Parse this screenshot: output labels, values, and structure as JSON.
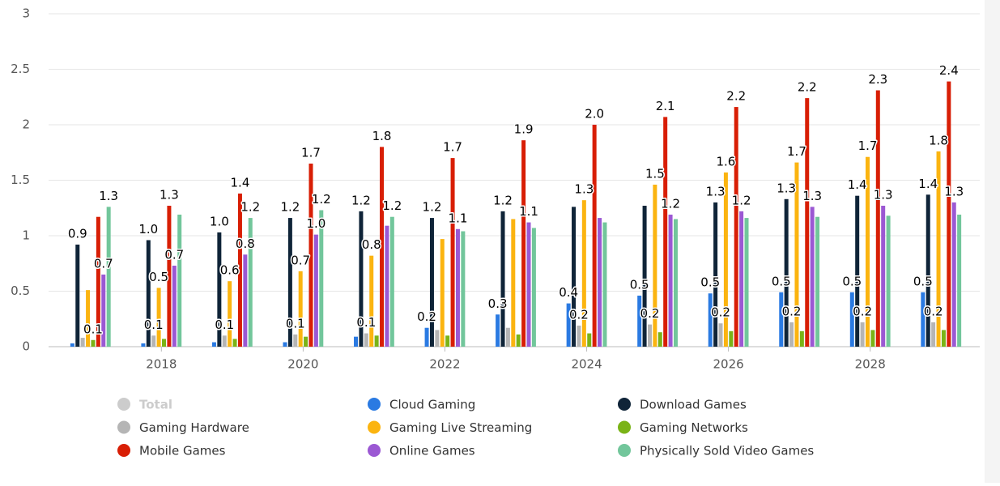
{
  "chart_data": {
    "type": "bar",
    "x": [
      2017,
      2018,
      2019,
      2020,
      2021,
      2022,
      2023,
      2024,
      2025,
      2026,
      2027,
      2028,
      2029
    ],
    "xlim": [
      2016.5,
      2029.5
    ],
    "xticks": [
      2018,
      2020,
      2022,
      2024,
      2026,
      2028
    ],
    "ylim": [
      0,
      3
    ],
    "yticks": [
      0,
      0.5,
      1,
      1.5,
      2,
      2.5,
      3
    ],
    "grid": true,
    "series": [
      {
        "name": "Total",
        "color": "#cccccc",
        "visible": false,
        "values": [
          null,
          null,
          null,
          null,
          null,
          null,
          null,
          null,
          null,
          null,
          null,
          null,
          null
        ]
      },
      {
        "name": "Cloud Gaming",
        "color": "#2a7ae2",
        "values": [
          0.03,
          0.03,
          0.04,
          0.04,
          0.09,
          0.17,
          0.29,
          0.39,
          0.46,
          0.48,
          0.49,
          0.49,
          0.49
        ],
        "value_labels": [
          null,
          null,
          null,
          null,
          null,
          "0.2",
          "0.3",
          "0.4",
          "0.5",
          "0.5",
          "0.5",
          "0.5",
          "0.5"
        ]
      },
      {
        "name": "Download Games",
        "color": "#0f2438",
        "values": [
          0.92,
          0.96,
          1.03,
          1.16,
          1.22,
          1.16,
          1.22,
          1.26,
          1.27,
          1.3,
          1.33,
          1.36,
          1.37
        ],
        "value_labels": [
          "0.9",
          "1.0",
          "1.0",
          "1.2",
          "1.2",
          "1.2",
          "1.2",
          null,
          null,
          "1.3",
          "1.3",
          "1.4",
          "1.4"
        ]
      },
      {
        "name": "Gaming Hardware",
        "color": "#b5b5b5",
        "values": [
          0.08,
          0.1,
          0.1,
          0.11,
          0.12,
          0.15,
          0.17,
          0.19,
          0.2,
          0.21,
          0.22,
          0.22,
          0.22
        ],
        "value_labels": [
          null,
          "0.1",
          "0.1",
          "0.1",
          "0.1",
          null,
          null,
          "0.2",
          "0.2",
          "0.2",
          "0.2",
          "0.2",
          "0.2"
        ]
      },
      {
        "name": "Gaming Live Streaming",
        "color": "#fbb410",
        "values": [
          0.51,
          0.53,
          0.59,
          0.68,
          0.82,
          0.97,
          1.15,
          1.32,
          1.46,
          1.57,
          1.66,
          1.71,
          1.76
        ],
        "value_labels": [
          null,
          "0.5",
          "0.6",
          "0.7",
          "0.8",
          null,
          null,
          "1.3",
          "1.5",
          "1.6",
          "1.7",
          "1.7",
          "1.8"
        ]
      },
      {
        "name": "Gaming Networks",
        "color": "#7ab317",
        "values": [
          0.06,
          0.07,
          0.07,
          0.09,
          0.1,
          0.1,
          0.11,
          0.12,
          0.13,
          0.14,
          0.14,
          0.15,
          0.15
        ],
        "value_labels": [
          "0.1",
          null,
          null,
          null,
          null,
          null,
          null,
          null,
          null,
          null,
          null,
          null,
          null
        ]
      },
      {
        "name": "Mobile Games",
        "color": "#d81e05",
        "values": [
          1.17,
          1.27,
          1.38,
          1.65,
          1.8,
          1.7,
          1.86,
          2.0,
          2.07,
          2.16,
          2.24,
          2.31,
          2.39
        ],
        "value_labels": [
          null,
          "1.3",
          "1.4",
          "1.7",
          "1.8",
          "1.7",
          "1.9",
          "2.0",
          "2.1",
          "2.2",
          "2.2",
          "2.3",
          "2.4"
        ]
      },
      {
        "name": "Online Games",
        "color": "#9b58d3",
        "values": [
          0.65,
          0.73,
          0.83,
          1.01,
          1.09,
          1.06,
          1.12,
          1.16,
          1.19,
          1.22,
          1.26,
          1.27,
          1.3
        ],
        "value_labels": [
          "0.7",
          "0.7",
          "0.8",
          "1.0",
          null,
          "1.1",
          "1.1",
          null,
          "1.2",
          "1.2",
          "1.3",
          "1.3",
          "1.3"
        ]
      },
      {
        "name": "Physically Sold Video Games",
        "color": "#72c69b",
        "values": [
          1.26,
          1.19,
          1.16,
          1.23,
          1.17,
          1.04,
          1.07,
          1.12,
          1.15,
          1.16,
          1.17,
          1.18,
          1.19
        ],
        "value_labels": [
          "1.3",
          null,
          "1.2",
          "1.2",
          "1.2",
          null,
          null,
          null,
          null,
          null,
          null,
          null,
          null
        ]
      }
    ]
  }
}
